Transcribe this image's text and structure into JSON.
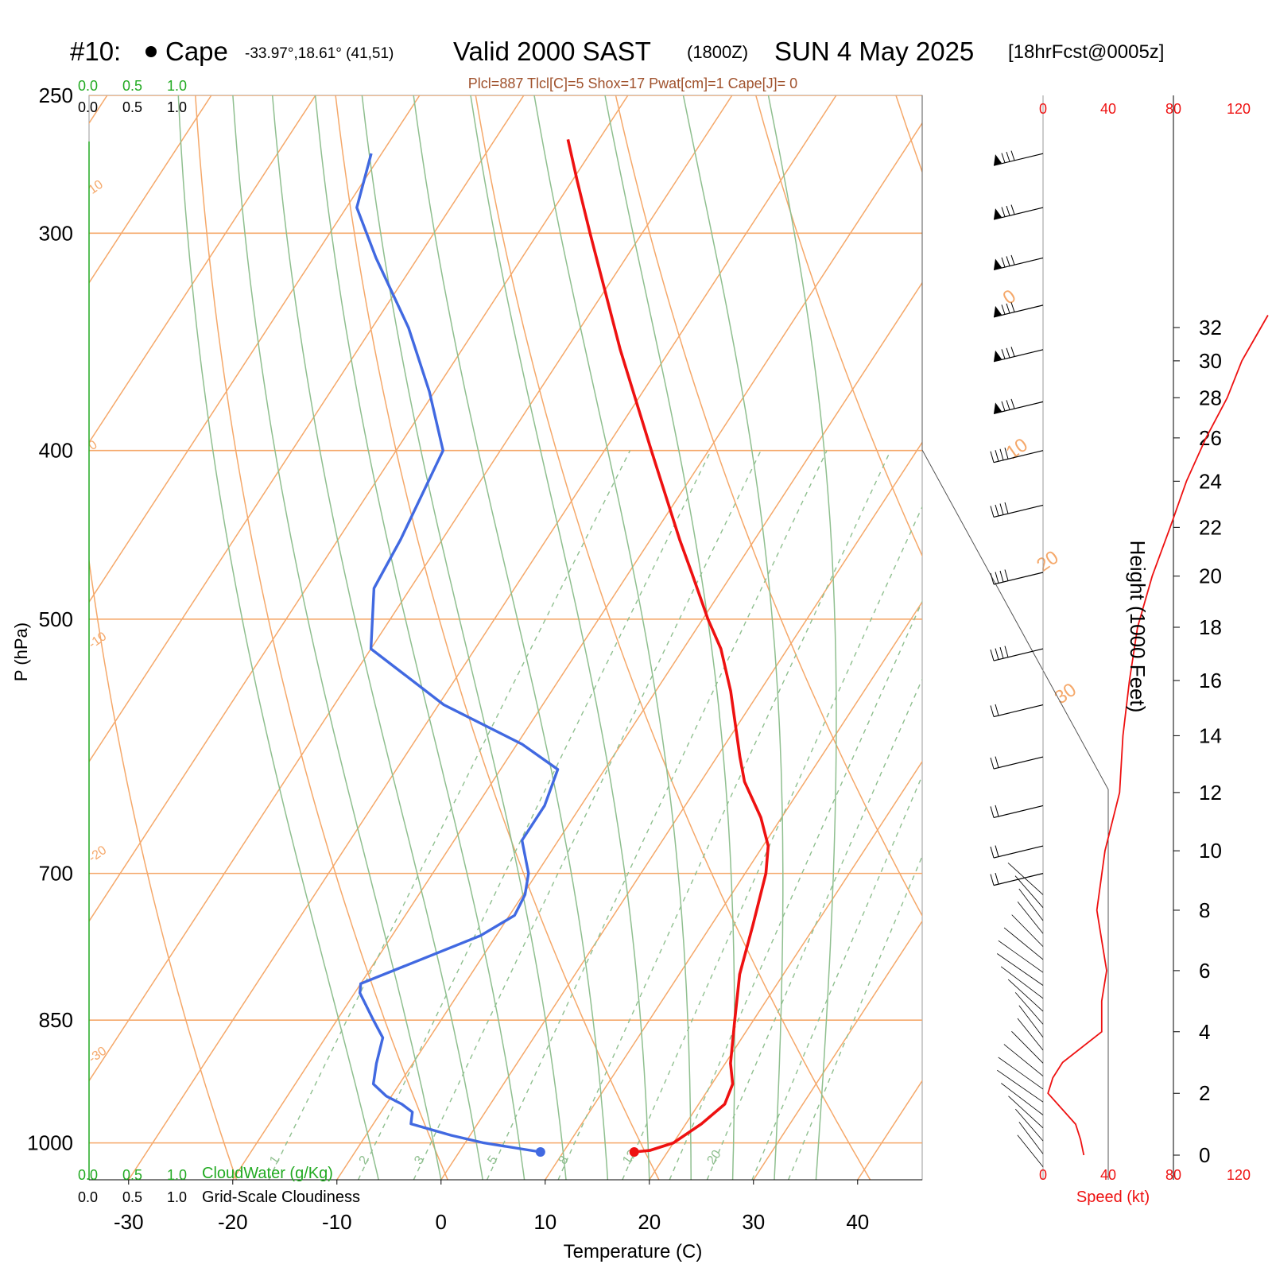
{
  "header": {
    "station": "#10:",
    "name": "Cape",
    "coords": "-33.97°,18.61° (41,51)",
    "valid": "Valid 2000 SAST",
    "utc": "(1800Z)",
    "date": "SUN 4 May 2025",
    "forecast": "[18hrFcst@0005z]",
    "indices": "Plcl=887 Tlcl[C]=5 Shox=17 Pwat[cm]=1 Cape[J]= 0"
  },
  "labels": {
    "xlabel": "Temperature (C)",
    "ylabel": "P (hPa)",
    "height_label": "Height (1000 Feet)",
    "speed_label": "Speed (kt)",
    "cloudwater_label": "CloudWater (g/Kg)",
    "cloudiness_label": "Grid-Scale Cloudiness"
  },
  "colors": {
    "temperature": "#ee1111",
    "dewpoint": "#4169e1",
    "isotherm": "#f5a86a",
    "dry_adiabat": "#f5a86a",
    "moist_adiabat": "#8fbf8f",
    "mixing_ratio": "#8fbf8f",
    "cloudwater": "#22aa22",
    "speed": "#ee1111",
    "indices_text": "#a0522d"
  },
  "chart_data": {
    "type": "skew-t",
    "pressure_levels": [
      250,
      300,
      400,
      500,
      700,
      850,
      1000
    ],
    "temp_ticks": [
      -30,
      -20,
      -10,
      0,
      10,
      20,
      30,
      40
    ],
    "cloud_scale_ticks": [
      "0.0",
      "0.5",
      "1.0"
    ],
    "isotherm_labels": [
      "10",
      "0",
      "-10",
      "-20",
      "-30",
      "0",
      "10",
      "20",
      "30"
    ],
    "mixing_ratio_labels": [
      "1",
      "2",
      "3",
      "5",
      "8",
      "12",
      "20"
    ],
    "height_ticks_kft": [
      0,
      2,
      4,
      6,
      8,
      10,
      12,
      14,
      16,
      18,
      20,
      22,
      24,
      26,
      28,
      30,
      32
    ],
    "speed_ticks_kt": [
      0,
      40,
      80,
      120
    ],
    "temperature_profile": [
      {
        "p": 1012,
        "t": 16.8
      },
      {
        "p": 1010,
        "t": 18.2
      },
      {
        "p": 1000,
        "t": 20.0
      },
      {
        "p": 975,
        "t": 21.5
      },
      {
        "p": 950,
        "t": 22.5
      },
      {
        "p": 925,
        "t": 22.0
      },
      {
        "p": 900,
        "t": 20.5
      },
      {
        "p": 850,
        "t": 18.2
      },
      {
        "p": 800,
        "t": 15.8
      },
      {
        "p": 750,
        "t": 14.0
      },
      {
        "p": 700,
        "t": 12.0
      },
      {
        "p": 675,
        "t": 10.5
      },
      {
        "p": 650,
        "t": 8.0
      },
      {
        "p": 620,
        "t": 4.2
      },
      {
        "p": 600,
        "t": 2.2
      },
      {
        "p": 550,
        "t": -2.8
      },
      {
        "p": 520,
        "t": -6.4
      },
      {
        "p": 500,
        "t": -9.5
      },
      {
        "p": 470,
        "t": -14.0
      },
      {
        "p": 450,
        "t": -17.2
      },
      {
        "p": 400,
        "t": -25.5
      },
      {
        "p": 350,
        "t": -34.8
      },
      {
        "p": 300,
        "t": -45.0
      },
      {
        "p": 280,
        "t": -49.5
      },
      {
        "p": 265,
        "t": -53.0
      }
    ],
    "dewpoint_profile": [
      {
        "p": 1012,
        "t": 7.8
      },
      {
        "p": 1000,
        "t": 1.8
      },
      {
        "p": 990,
        "t": -1.8
      },
      {
        "p": 975,
        "t": -6.4
      },
      {
        "p": 960,
        "t": -7.0
      },
      {
        "p": 950,
        "t": -8.5
      },
      {
        "p": 940,
        "t": -10.5
      },
      {
        "p": 925,
        "t": -12.5
      },
      {
        "p": 900,
        "t": -13.5
      },
      {
        "p": 870,
        "t": -14.5
      },
      {
        "p": 850,
        "t": -16.5
      },
      {
        "p": 820,
        "t": -19.5
      },
      {
        "p": 810,
        "t": -20.0
      },
      {
        "p": 760,
        "t": -11.5
      },
      {
        "p": 740,
        "t": -9.5
      },
      {
        "p": 720,
        "t": -9.8
      },
      {
        "p": 700,
        "t": -10.8
      },
      {
        "p": 670,
        "t": -13.5
      },
      {
        "p": 640,
        "t": -13.5
      },
      {
        "p": 610,
        "t": -14.5
      },
      {
        "p": 590,
        "t": -19.5
      },
      {
        "p": 560,
        "t": -29.5
      },
      {
        "p": 520,
        "t": -40.0
      },
      {
        "p": 480,
        "t": -43.5
      },
      {
        "p": 450,
        "t": -44.0
      },
      {
        "p": 400,
        "t": -45.5
      },
      {
        "p": 370,
        "t": -50.5
      },
      {
        "p": 340,
        "t": -56.5
      },
      {
        "p": 310,
        "t": -64.0
      },
      {
        "p": 290,
        "t": -69.0
      },
      {
        "p": 270,
        "t": -71.0
      }
    ],
    "wind_speed_profile_kt": [
      {
        "h": 0.0,
        "s": 25
      },
      {
        "h": 0.5,
        "s": 23
      },
      {
        "h": 1.0,
        "s": 20
      },
      {
        "h": 2.0,
        "s": 3
      },
      {
        "h": 2.5,
        "s": 6
      },
      {
        "h": 3.0,
        "s": 12
      },
      {
        "h": 4.0,
        "s": 36
      },
      {
        "h": 5.0,
        "s": 36
      },
      {
        "h": 6.0,
        "s": 39
      },
      {
        "h": 7.0,
        "s": 36
      },
      {
        "h": 8.0,
        "s": 33
      },
      {
        "h": 10.0,
        "s": 38
      },
      {
        "h": 12.0,
        "s": 47
      },
      {
        "h": 14.0,
        "s": 49
      },
      {
        "h": 16.0,
        "s": 53
      },
      {
        "h": 18.0,
        "s": 58
      },
      {
        "h": 20.0,
        "s": 67
      },
      {
        "h": 22.0,
        "s": 78
      },
      {
        "h": 24.0,
        "s": 88
      },
      {
        "h": 26.0,
        "s": 100
      },
      {
        "h": 28.0,
        "s": 113
      },
      {
        "h": 30.0,
        "s": 122
      },
      {
        "h": 32.8,
        "s": 138
      }
    ],
    "wind_barb_pressures": [
      270,
      290,
      310,
      330,
      350,
      375,
      400,
      430,
      470,
      520,
      560,
      600,
      640,
      675,
      700
    ],
    "t_range": [
      -33.8,
      46.2
    ],
    "p_range": [
      250,
      1050
    ]
  }
}
